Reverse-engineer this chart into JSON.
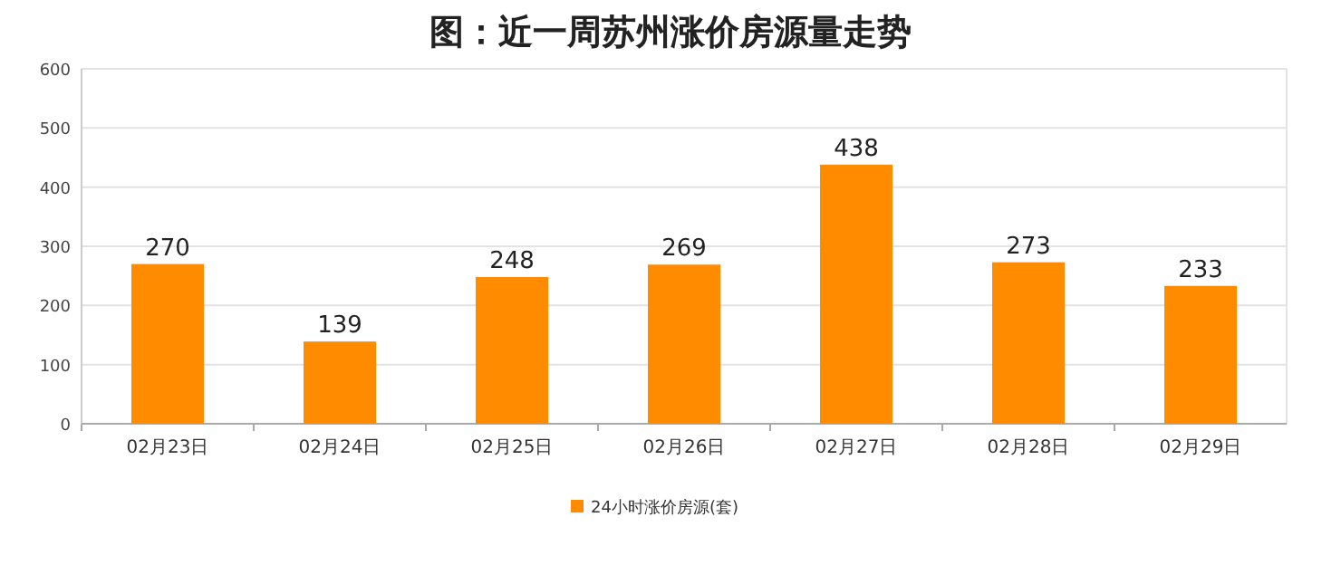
{
  "chart_data": {
    "type": "bar",
    "title": "图：近一周苏州涨价房源量走势",
    "categories": [
      "02月23日",
      "02月24日",
      "02月25日",
      "02月26日",
      "02月27日",
      "02月28日",
      "02月29日"
    ],
    "series": [
      {
        "name": "24小时涨价房源(套)",
        "color": "#ff8c00",
        "values": [
          270,
          139,
          248,
          269,
          438,
          273,
          233
        ]
      }
    ],
    "ylim": [
      0,
      600
    ],
    "yticks": [
      0,
      100,
      200,
      300,
      400,
      500,
      600
    ],
    "grid": "y",
    "legend": "bottom",
    "data_labels": true
  }
}
